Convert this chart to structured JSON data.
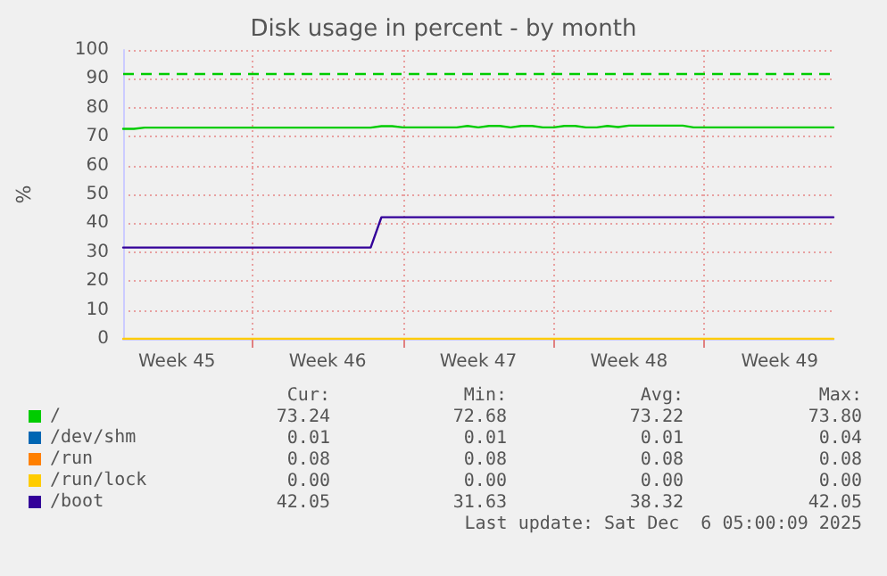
{
  "chart_data": {
    "type": "line",
    "title": "Disk usage in percent - by month",
    "ylabel": "%",
    "categories": [
      null,
      null,
      null,
      null,
      null,
      "Week 45",
      null,
      null,
      null,
      null,
      null,
      null,
      null,
      null,
      null,
      null,
      null,
      null,
      null,
      "Week 46",
      null,
      null,
      null,
      null,
      null,
      null,
      null,
      null,
      null,
      null,
      null,
      null,
      null,
      "Week 47",
      null,
      null,
      null,
      null,
      null,
      null,
      null,
      null,
      null,
      null,
      null,
      null,
      null,
      "Week 48",
      null,
      null,
      null,
      null,
      null,
      null,
      null,
      null,
      null,
      null,
      null,
      null,
      null,
      "Week 49",
      null,
      null,
      null,
      null,
      null
    ],
    "ylim": [
      0,
      100
    ],
    "yticks": [
      0,
      10,
      20,
      30,
      40,
      50,
      60,
      70,
      80,
      90,
      100
    ],
    "grid": true,
    "legend": "bottom left",
    "marker": "none",
    "line_style": "solid",
    "ref_lines": [
      {
        "axis": "y",
        "value": 92,
        "label": null,
        "color": "#00cc00",
        "line_style": "dashed"
      }
    ],
    "series": [
      {
        "name": "/",
        "color": "#00cc00",
        "values": [
          72.7,
          72.7,
          73.1,
          73.1,
          73.1,
          73.1,
          73.1,
          73.1,
          73.1,
          73.1,
          73.1,
          73.1,
          73.1,
          73.1,
          73.1,
          73.1,
          73.1,
          73.1,
          73.1,
          73.1,
          73.1,
          73.1,
          73.1,
          73.1,
          73.6,
          73.6,
          73.2,
          73.2,
          73.2,
          73.2,
          73.2,
          73.2,
          73.7,
          73.2,
          73.7,
          73.7,
          73.2,
          73.7,
          73.7,
          73.2,
          73.2,
          73.7,
          73.7,
          73.2,
          73.2,
          73.7,
          73.3,
          73.8,
          73.8,
          73.8,
          73.8,
          73.8,
          73.8,
          73.2,
          73.2,
          73.2,
          73.2,
          73.2,
          73.2,
          73.2,
          73.2,
          73.2,
          73.2,
          73.2,
          73.2,
          73.2,
          73.2
        ]
      },
      {
        "name": "/dev/shm",
        "color": "#0066b3",
        "values": [
          null,
          null,
          null,
          null,
          null,
          null,
          null,
          null,
          null,
          null,
          null,
          null,
          null,
          null,
          null,
          null,
          null,
          null,
          null,
          null,
          null,
          null,
          null,
          null,
          null,
          null,
          null,
          null,
          null,
          null,
          null,
          null,
          null,
          null,
          null,
          null,
          null,
          null,
          null,
          null,
          null,
          null,
          null,
          null,
          null,
          null,
          null,
          null,
          null,
          null,
          null,
          null,
          null,
          null,
          null,
          null,
          null,
          null,
          null,
          null,
          null,
          null,
          null,
          null,
          null,
          null,
          null
        ]
      },
      {
        "name": "/run",
        "color": "#ff8000",
        "values": [
          null,
          null,
          null,
          null,
          null,
          null,
          null,
          null,
          null,
          null,
          null,
          null,
          null,
          null,
          null,
          null,
          null,
          null,
          null,
          null,
          null,
          null,
          null,
          null,
          null,
          null,
          null,
          null,
          null,
          null,
          null,
          null,
          null,
          null,
          null,
          null,
          null,
          null,
          null,
          null,
          null,
          null,
          null,
          null,
          null,
          null,
          null,
          null,
          null,
          null,
          null,
          null,
          null,
          null,
          null,
          null,
          null,
          null,
          null,
          null,
          null,
          null,
          null,
          null,
          null,
          null,
          null
        ]
      },
      {
        "name": "/run/lock",
        "color": "#ffcc00",
        "values": [
          0,
          0,
          0,
          0,
          0,
          0,
          0,
          0,
          0,
          0,
          0,
          0,
          0,
          0,
          0,
          0,
          0,
          0,
          0,
          0,
          0,
          0,
          0,
          0,
          0,
          0,
          0,
          0,
          0,
          0,
          0,
          0,
          0,
          0,
          0,
          0,
          0,
          0,
          0,
          0,
          0,
          0,
          0,
          0,
          0,
          0,
          0,
          0,
          0,
          0,
          0,
          0,
          0,
          0,
          0,
          0,
          0,
          0,
          0,
          0,
          0,
          0,
          0,
          0,
          0,
          0,
          0
        ]
      },
      {
        "name": "/boot",
        "color": "#330099",
        "values": [
          31.6,
          31.6,
          31.6,
          31.6,
          31.6,
          31.6,
          31.6,
          31.6,
          31.6,
          31.6,
          31.6,
          31.6,
          31.6,
          31.6,
          31.6,
          31.6,
          31.6,
          31.6,
          31.6,
          31.6,
          31.6,
          31.6,
          31.6,
          31.6,
          42.1,
          42.1,
          42.1,
          42.1,
          42.1,
          42.1,
          42.1,
          42.1,
          42.1,
          42.1,
          42.1,
          42.1,
          42.1,
          42.1,
          42.1,
          42.1,
          42.1,
          42.1,
          42.1,
          42.1,
          42.1,
          42.1,
          42.1,
          42.1,
          42.1,
          42.1,
          42.1,
          42.1,
          42.1,
          42.1,
          42.1,
          42.1,
          42.1,
          42.1,
          42.1,
          42.1,
          42.1,
          42.1,
          42.1,
          42.1,
          42.1,
          42.1,
          42.1
        ]
      }
    ],
    "annotations": [
      "Cur:",
      "Min:",
      "Avg:",
      "Max:",
      "73.24",
      "72.68",
      "73.22",
      "73.80",
      "0.01",
      "0.01",
      "0.01",
      "0.04",
      "0.08",
      "0.08",
      "0.08",
      "0.08",
      "0.00",
      "0.00",
      "0.00",
      "0.00",
      "42.05",
      "31.63",
      "38.32",
      "42.05",
      "Last update: Sat Dec  6 05:00:09 2025"
    ]
  }
}
